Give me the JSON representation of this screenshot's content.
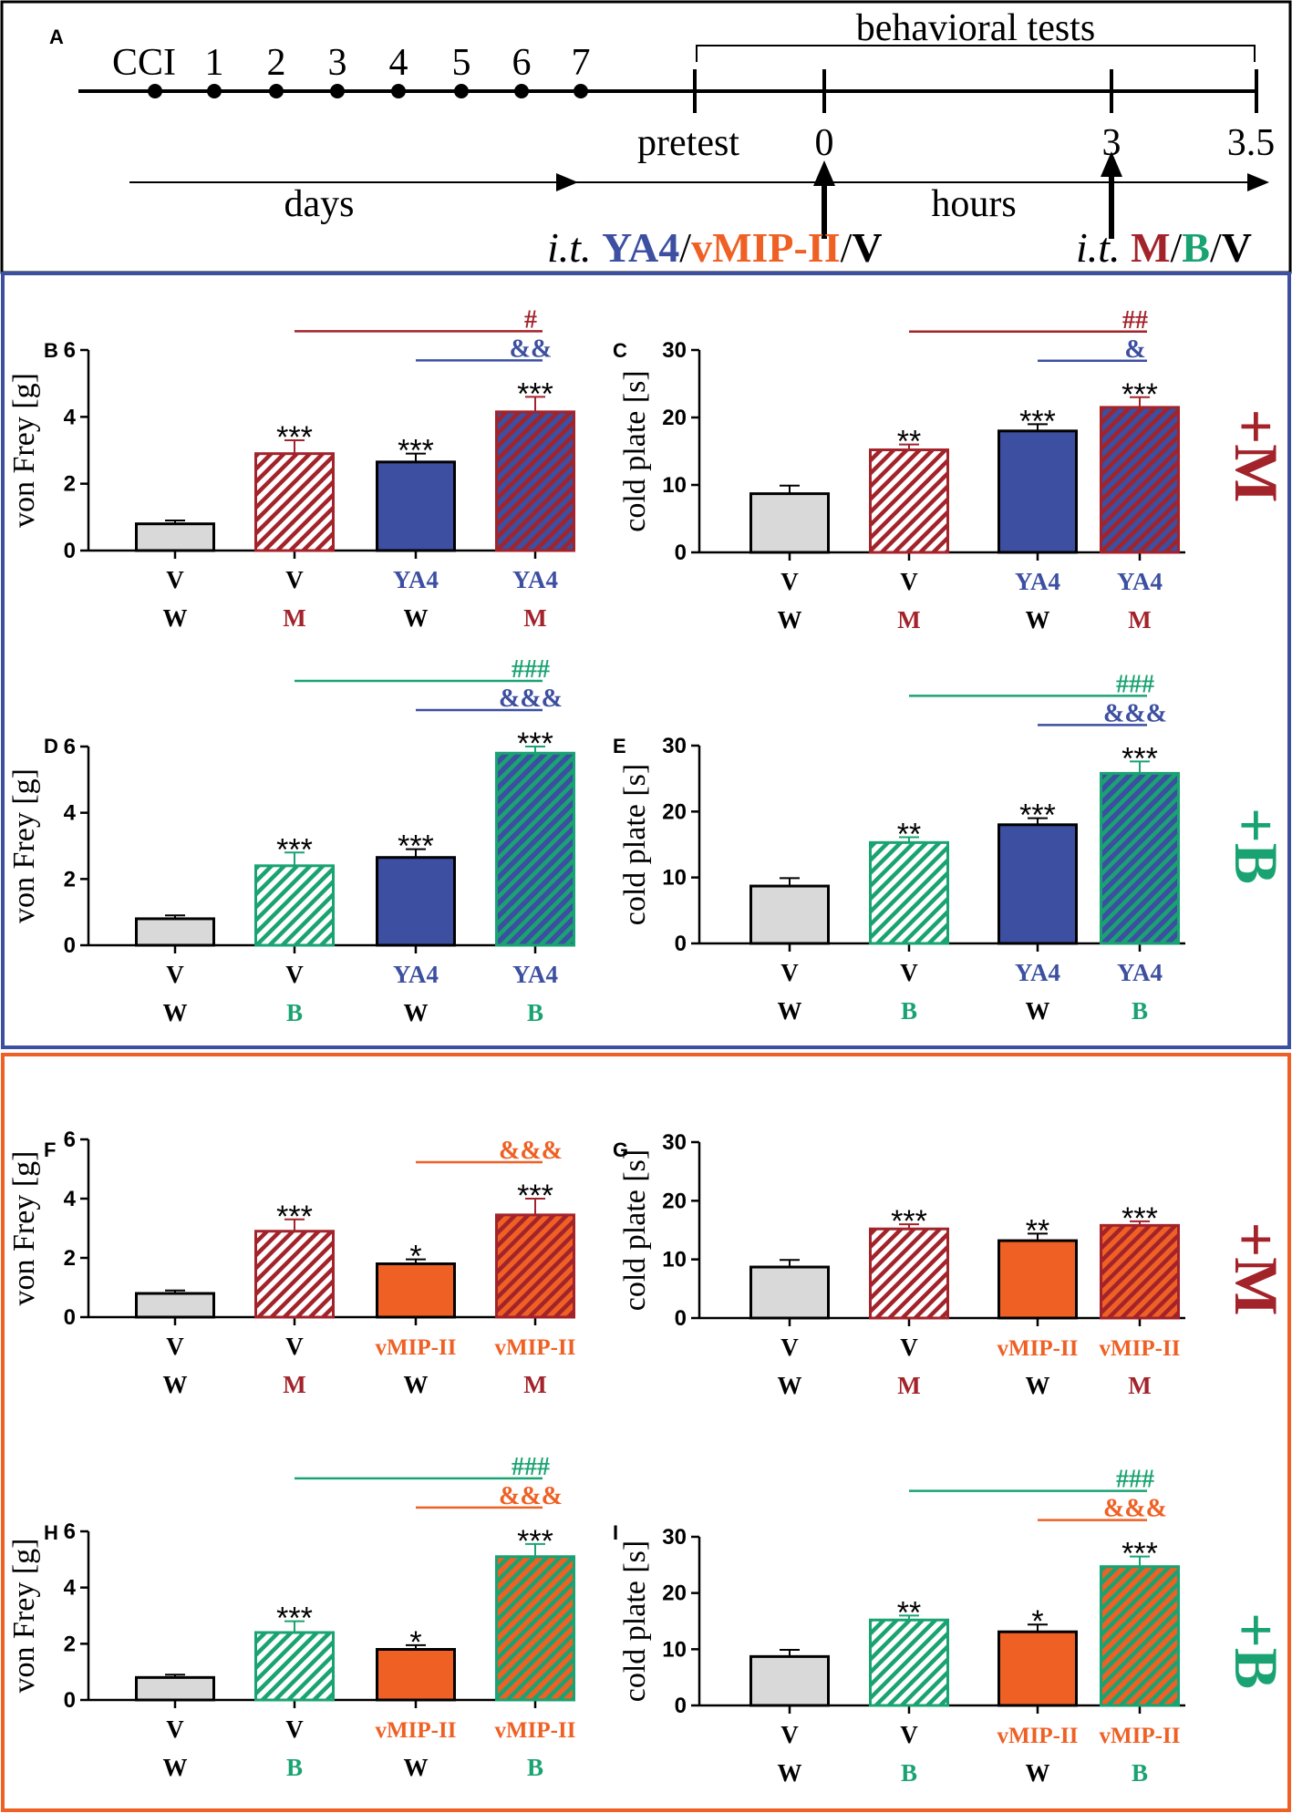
{
  "colors": {
    "navy": "#3c4fa0",
    "orange": "#ef6024",
    "darkred": "#a3232b",
    "green": "#1aa372",
    "gray": "#d9d9d9",
    "black": "#000000"
  },
  "timeline": {
    "panel_label": "A",
    "days": [
      "CCI",
      "1",
      "2",
      "3",
      "4",
      "5",
      "6",
      "7"
    ],
    "pretest": "pretest",
    "behavioral_tests": "behavioral tests",
    "hours": [
      "0",
      "3",
      "3.5"
    ],
    "days_label": "days",
    "hours_label": "hours",
    "injection1": {
      "prefix": "i.t.",
      "a": "YA4",
      "b": "vMIP-II",
      "c": "V",
      "sep": "/"
    },
    "injection2": {
      "prefix": "i.t.",
      "a": "M",
      "b": "B",
      "c": "V",
      "sep": "/"
    }
  },
  "side_labels": {
    "m": "+M",
    "b": "+B"
  },
  "chart_data": [
    {
      "panel": "B",
      "type": "bar",
      "ylabel": "von Frey [g]",
      "ylim": [
        0,
        6
      ],
      "yticks": [
        "0",
        "2",
        "4",
        "6"
      ],
      "categories": [
        [
          "V",
          "W"
        ],
        [
          "V",
          "M"
        ],
        [
          "YA4",
          "W"
        ],
        [
          "YA4",
          "M"
        ]
      ],
      "values": [
        0.8,
        2.9,
        2.65,
        4.15
      ],
      "errors": [
        0.1,
        0.4,
        0.25,
        0.45
      ],
      "stars": [
        "",
        "***",
        "***",
        "***"
      ],
      "brackets": [
        {
          "from": 1,
          "to": 3,
          "label": "#",
          "color": "darkred"
        },
        {
          "from": 2,
          "to": 3,
          "label": "&&",
          "color": "navy"
        }
      ]
    },
    {
      "panel": "C",
      "type": "bar",
      "ylabel": "cold plate [s]",
      "ylim": [
        0,
        30
      ],
      "yticks": [
        "0",
        "10",
        "20",
        "30"
      ],
      "categories": [
        [
          "V",
          "W"
        ],
        [
          "V",
          "M"
        ],
        [
          "YA4",
          "W"
        ],
        [
          "YA4",
          "M"
        ]
      ],
      "values": [
        8.7,
        15.2,
        18.0,
        21.5
      ],
      "errors": [
        1.2,
        0.8,
        1.0,
        1.5
      ],
      "stars": [
        "",
        "**",
        "***",
        "***"
      ],
      "brackets": [
        {
          "from": 1,
          "to": 3,
          "label": "##",
          "color": "darkred"
        },
        {
          "from": 2,
          "to": 3,
          "label": "&",
          "color": "navy"
        }
      ]
    },
    {
      "panel": "D",
      "type": "bar",
      "ylabel": "von Frey [g]",
      "ylim": [
        0,
        6
      ],
      "yticks": [
        "0",
        "2",
        "4",
        "6"
      ],
      "categories": [
        [
          "V",
          "W"
        ],
        [
          "V",
          "B"
        ],
        [
          "YA4",
          "W"
        ],
        [
          "YA4",
          "B"
        ]
      ],
      "values": [
        0.8,
        2.4,
        2.65,
        5.8
      ],
      "errors": [
        0.1,
        0.4,
        0.25,
        0.2
      ],
      "stars": [
        "",
        "***",
        "***",
        "***"
      ],
      "brackets": [
        {
          "from": 1,
          "to": 3,
          "label": "###",
          "color": "green"
        },
        {
          "from": 2,
          "to": 3,
          "label": "&&&",
          "color": "navy"
        }
      ]
    },
    {
      "panel": "E",
      "type": "bar",
      "ylabel": "cold plate [s]",
      "ylim": [
        0,
        30
      ],
      "yticks": [
        "0",
        "10",
        "20",
        "30"
      ],
      "categories": [
        [
          "V",
          "W"
        ],
        [
          "V",
          "B"
        ],
        [
          "YA4",
          "W"
        ],
        [
          "YA4",
          "B"
        ]
      ],
      "values": [
        8.7,
        15.3,
        18.0,
        25.8
      ],
      "errors": [
        1.2,
        0.8,
        1.0,
        1.8
      ],
      "stars": [
        "",
        "**",
        "***",
        "***"
      ],
      "brackets": [
        {
          "from": 1,
          "to": 3,
          "label": "###",
          "color": "green"
        },
        {
          "from": 2,
          "to": 3,
          "label": "&&&",
          "color": "navy"
        }
      ]
    },
    {
      "panel": "F",
      "type": "bar",
      "ylabel": "von Frey [g]",
      "ylim": [
        0,
        6
      ],
      "yticks": [
        "0",
        "2",
        "4",
        "6"
      ],
      "categories": [
        [
          "V",
          "W"
        ],
        [
          "V",
          "M"
        ],
        [
          "vMIP-II",
          "W"
        ],
        [
          "vMIP-II",
          "M"
        ]
      ],
      "values": [
        0.8,
        2.9,
        1.8,
        3.45
      ],
      "errors": [
        0.1,
        0.4,
        0.15,
        0.55
      ],
      "stars": [
        "",
        "***",
        "*",
        "***"
      ],
      "brackets": [
        {
          "from": 2,
          "to": 3,
          "label": "&&&",
          "color": "orange"
        }
      ]
    },
    {
      "panel": "G",
      "type": "bar",
      "ylabel": "cold plate [s]",
      "ylim": [
        0,
        30
      ],
      "yticks": [
        "0",
        "10",
        "20",
        "30"
      ],
      "categories": [
        [
          "V",
          "W"
        ],
        [
          "V",
          "M"
        ],
        [
          "vMIP-II",
          "W"
        ],
        [
          "vMIP-II",
          "M"
        ]
      ],
      "values": [
        8.7,
        15.2,
        13.2,
        15.8
      ],
      "errors": [
        1.2,
        0.8,
        1.2,
        0.7
      ],
      "stars": [
        "",
        "***",
        "**",
        "***"
      ],
      "brackets": []
    },
    {
      "panel": "H",
      "type": "bar",
      "ylabel": "von Frey [g]",
      "ylim": [
        0,
        6
      ],
      "yticks": [
        "0",
        "2",
        "4",
        "6"
      ],
      "categories": [
        [
          "V",
          "W"
        ],
        [
          "V",
          "B"
        ],
        [
          "vMIP-II",
          "W"
        ],
        [
          "vMIP-II",
          "B"
        ]
      ],
      "values": [
        0.8,
        2.4,
        1.8,
        5.1
      ],
      "errors": [
        0.1,
        0.4,
        0.15,
        0.45
      ],
      "stars": [
        "",
        "***",
        "*",
        "***"
      ],
      "brackets": [
        {
          "from": 1,
          "to": 3,
          "label": "###",
          "color": "green"
        },
        {
          "from": 2,
          "to": 3,
          "label": "&&&",
          "color": "orange"
        }
      ]
    },
    {
      "panel": "I",
      "type": "bar",
      "ylabel": "cold plate [s]",
      "ylim": [
        0,
        30
      ],
      "yticks": [
        "0",
        "10",
        "20",
        "30"
      ],
      "categories": [
        [
          "V",
          "W"
        ],
        [
          "V",
          "B"
        ],
        [
          "vMIP-II",
          "W"
        ],
        [
          "vMIP-II",
          "B"
        ]
      ],
      "values": [
        8.7,
        15.2,
        13.1,
        24.7
      ],
      "errors": [
        1.2,
        0.8,
        1.3,
        1.8
      ],
      "stars": [
        "",
        "**",
        "*",
        "***"
      ],
      "brackets": [
        {
          "from": 1,
          "to": 3,
          "label": "###",
          "color": "green"
        },
        {
          "from": 2,
          "to": 3,
          "label": "&&&",
          "color": "orange"
        }
      ]
    }
  ]
}
